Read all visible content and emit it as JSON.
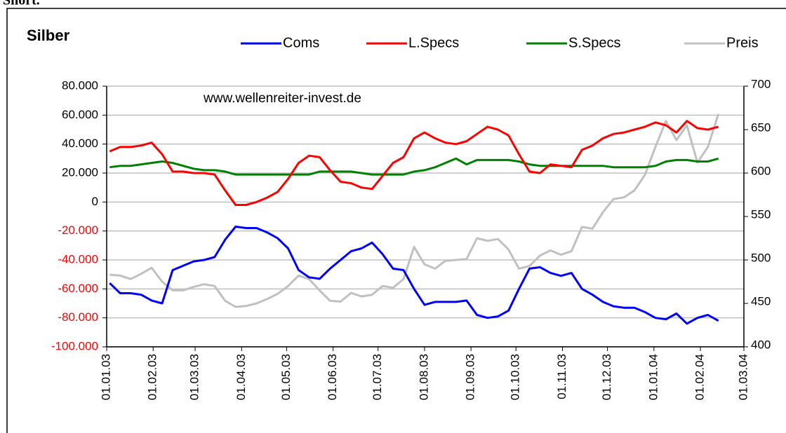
{
  "page_text": "Short.",
  "chart_data": {
    "type": "line",
    "title": "Silber",
    "annotation": "www.wellenreiter-invest.de",
    "x": [
      "2003-01-03",
      "2003-01-10",
      "2003-01-17",
      "2003-01-24",
      "2003-01-31",
      "2003-02-07",
      "2003-02-14",
      "2003-02-21",
      "2003-02-28",
      "2003-03-07",
      "2003-03-14",
      "2003-03-21",
      "2003-03-28",
      "2003-04-04",
      "2003-04-11",
      "2003-04-18",
      "2003-04-25",
      "2003-05-02",
      "2003-05-09",
      "2003-05-16",
      "2003-05-23",
      "2003-05-30",
      "2003-06-06",
      "2003-06-13",
      "2003-06-20",
      "2003-06-27",
      "2003-07-04",
      "2003-07-11",
      "2003-07-18",
      "2003-07-25",
      "2003-08-01",
      "2003-08-08",
      "2003-08-15",
      "2003-08-22",
      "2003-08-29",
      "2003-09-05",
      "2003-09-12",
      "2003-09-19",
      "2003-09-26",
      "2003-10-03",
      "2003-10-10",
      "2003-10-17",
      "2003-10-24",
      "2003-10-31",
      "2003-11-07",
      "2003-11-14",
      "2003-11-21",
      "2003-11-28",
      "2003-12-05",
      "2003-12-12",
      "2003-12-19",
      "2003-12-26",
      "2004-01-02",
      "2004-01-09",
      "2004-01-16",
      "2004-01-23",
      "2004-01-30",
      "2004-02-06",
      "2004-02-13"
    ],
    "series": [
      {
        "name": "Coms",
        "color": "#0000ff",
        "axis": "y",
        "values": [
          -56000,
          -63000,
          -63000,
          -64000,
          -68000,
          -70000,
          -47000,
          -44000,
          -41000,
          -40000,
          -38000,
          -26000,
          -17000,
          -18000,
          -18000,
          -21000,
          -25000,
          -32000,
          -47000,
          -52000,
          -53000,
          -46000,
          -40000,
          -34000,
          -32000,
          -28000,
          -36000,
          -46000,
          -47000,
          -60000,
          -71000,
          -69000,
          -69000,
          -69000,
          -68000,
          -78000,
          -80000,
          -79000,
          -75000,
          -60000,
          -46000,
          -45000,
          -49000,
          -51000,
          -49000,
          -60000,
          -64000,
          -69000,
          -72000,
          -73000,
          -73000,
          -76000,
          -80000,
          -81000,
          -77000,
          -84000,
          -80000,
          -78000,
          -82000
        ]
      },
      {
        "name": "L.Specs",
        "color": "#ff0000",
        "axis": "y",
        "values": [
          35000,
          38000,
          38000,
          39000,
          41000,
          33000,
          21000,
          21000,
          20000,
          20000,
          19000,
          8000,
          -2000,
          -2000,
          0,
          3000,
          7000,
          16000,
          27000,
          32000,
          31000,
          22000,
          14000,
          13000,
          10000,
          9000,
          18000,
          27000,
          31000,
          44000,
          48000,
          44000,
          41000,
          40000,
          42000,
          47000,
          52000,
          50000,
          46000,
          33000,
          21000,
          20000,
          26000,
          25000,
          24000,
          36000,
          39000,
          44000,
          47000,
          48000,
          50000,
          52000,
          55000,
          53000,
          48000,
          56000,
          51000,
          50000,
          52000
        ]
      },
      {
        "name": "S.Specs",
        "color": "#008000",
        "axis": "y",
        "values": [
          24000,
          25000,
          25000,
          26000,
          27000,
          28000,
          27000,
          25000,
          23000,
          22000,
          22000,
          21000,
          19000,
          19000,
          19000,
          19000,
          19000,
          19000,
          19000,
          19000,
          21000,
          21000,
          21000,
          21000,
          20000,
          19000,
          19000,
          19000,
          19000,
          21000,
          22000,
          24000,
          27000,
          30000,
          26000,
          29000,
          29000,
          29000,
          29000,
          28000,
          26000,
          25000,
          25000,
          25000,
          25000,
          25000,
          25000,
          25000,
          24000,
          24000,
          24000,
          24000,
          25000,
          28000,
          29000,
          29000,
          28000,
          28000,
          30000
        ]
      },
      {
        "name": "Preis",
        "color": "#c0c0c0",
        "axis": "y2",
        "values": [
          483,
          482,
          478,
          484,
          491,
          475,
          465,
          465,
          469,
          472,
          470,
          453,
          446,
          447,
          450,
          455,
          461,
          470,
          482,
          478,
          465,
          453,
          452,
          462,
          458,
          460,
          470,
          468,
          478,
          515,
          495,
          490,
          499,
          500,
          501,
          525,
          522,
          524,
          512,
          490,
          493,
          505,
          511,
          506,
          510,
          538,
          536,
          555,
          570,
          572,
          580,
          598,
          630,
          660,
          638,
          655,
          612,
          630,
          668
        ]
      }
    ],
    "xlim": [
      "2003-01-01",
      "2004-03-01"
    ],
    "xticks": [
      {
        "value": "2003-01-01",
        "label": "01.01.03"
      },
      {
        "value": "2003-02-01",
        "label": "01.02.03"
      },
      {
        "value": "2003-03-01",
        "label": "01.03.03"
      },
      {
        "value": "2003-04-01",
        "label": "01.04.03"
      },
      {
        "value": "2003-05-01",
        "label": "01.05.03"
      },
      {
        "value": "2003-06-01",
        "label": "01.06.03"
      },
      {
        "value": "2003-07-01",
        "label": "01.07.03"
      },
      {
        "value": "2003-08-01",
        "label": "01.08.03"
      },
      {
        "value": "2003-09-01",
        "label": "01.09.03"
      },
      {
        "value": "2003-10-01",
        "label": "01.10.03"
      },
      {
        "value": "2003-11-01",
        "label": "01.11.03"
      },
      {
        "value": "2003-12-01",
        "label": "01.12.03"
      },
      {
        "value": "2004-01-01",
        "label": "01.01.04"
      },
      {
        "value": "2004-02-01",
        "label": "01.02.04"
      },
      {
        "value": "2004-03-01",
        "label": "01.03.04"
      }
    ],
    "ylim": [
      -100000,
      80000
    ],
    "yticks": [
      {
        "value": -100000,
        "label": "-100.000"
      },
      {
        "value": -80000,
        "label": "-80.000"
      },
      {
        "value": -60000,
        "label": "-60.000"
      },
      {
        "value": -40000,
        "label": "-40.000"
      },
      {
        "value": -20000,
        "label": "-20.000"
      },
      0,
      {
        "value": 20000,
        "label": "20.000"
      },
      {
        "value": 40000,
        "label": "40.000"
      },
      {
        "value": 60000,
        "label": "60.000"
      },
      {
        "value": 80000,
        "label": "80.000"
      }
    ],
    "negative_tick_color": "#ff0000",
    "y2lim": [
      400,
      700
    ],
    "y2ticks": [
      400,
      450,
      500,
      550,
      600,
      650,
      700
    ],
    "grid": true,
    "legend": "top"
  }
}
